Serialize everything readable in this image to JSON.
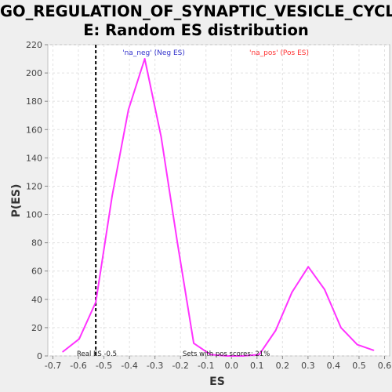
{
  "chart_data": {
    "type": "line",
    "title_line1": "GO_REGULATION_OF_SYNAPTIC_VESICLE_CYCL",
    "title_line2": "E: Random ES distribution",
    "xlabel": "ES",
    "ylabel": "P(ES)",
    "xlim": [
      -0.72,
      0.62
    ],
    "ylim": [
      0,
      220
    ],
    "x_ticks": [
      "-0.7",
      "-0.6",
      "-0.5",
      "-0.4",
      "-0.3",
      "-0.2",
      "-0.1",
      "0.0",
      "0.1",
      "0.2",
      "0.3",
      "0.4",
      "0.5",
      "0.6"
    ],
    "y_ticks": [
      "0",
      "20",
      "40",
      "60",
      "80",
      "100",
      "120",
      "140",
      "160",
      "180",
      "200",
      "220"
    ],
    "grid": true,
    "series": [
      {
        "color": "#ff33ff",
        "x": [
          -0.661,
          -0.597,
          -0.532,
          -0.468,
          -0.404,
          -0.34,
          -0.276,
          -0.212,
          -0.148,
          -0.083,
          -0.019,
          0.045,
          0.109,
          0.173,
          0.237,
          0.301,
          0.365,
          0.429,
          0.493,
          0.557
        ],
        "y": [
          3,
          12,
          38,
          113,
          174,
          210,
          155,
          80,
          9,
          1,
          0,
          0,
          1,
          18,
          45,
          63,
          47,
          20,
          8,
          4
        ]
      }
    ],
    "real_es": -0.532,
    "annotations": {
      "neg_label": "'na_neg' (Neg ES)",
      "pos_label": "'na_pos' (Pos ES)",
      "real_es_label": "Real ES -0.5",
      "pos_scores_label": "Sets with pos scores: 21%"
    },
    "colors": {
      "neg_label": "#3333cc",
      "pos_label": "#ff3333",
      "real_es_line": "#000000",
      "plot_bg": "#ffffff",
      "page_bg": "#efefef"
    }
  }
}
